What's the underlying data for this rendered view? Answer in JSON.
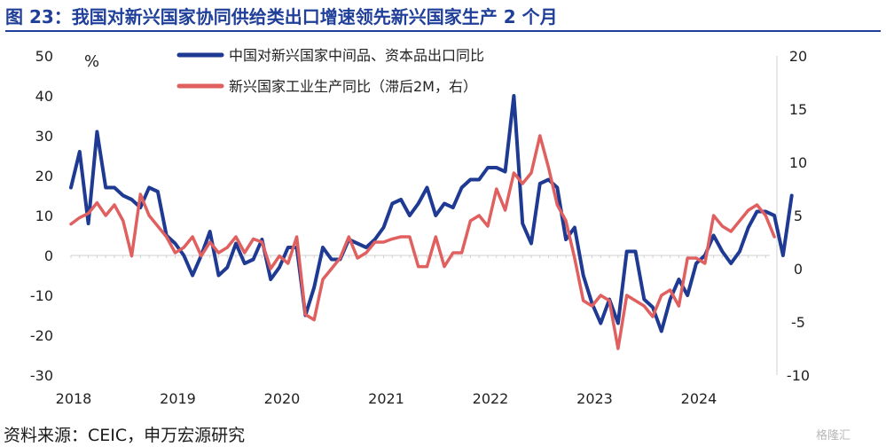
{
  "title": "图 23：我国对新兴国家协同供给类出口增速领先新兴国家生产 2 个月",
  "source": "资料来源：CEIC，申万宏源研究",
  "watermark": "格隆汇",
  "chart_data": {
    "type": "line",
    "y_left": {
      "label": "%",
      "min": -30,
      "max": 50,
      "ticks": [
        50,
        40,
        30,
        20,
        10,
        0,
        -10,
        -20,
        -30
      ]
    },
    "y_right": {
      "min": -10,
      "max": 20,
      "ticks": [
        20,
        15,
        10,
        5,
        0,
        -5,
        -10
      ]
    },
    "x_ticks": [
      "2018",
      "2019",
      "2020",
      "2021",
      "2022",
      "2023",
      "2024"
    ],
    "grid": false,
    "legend_position": "top-center",
    "series": [
      {
        "name": "中国对新兴国家中间品、资本品出口同比",
        "axis": "left",
        "color": "#1f3a93",
        "start": "2018-01",
        "values": [
          17,
          26,
          8,
          31,
          17,
          17,
          15,
          14,
          12,
          17,
          16,
          5,
          3,
          0,
          -5,
          0,
          6,
          -5,
          -3,
          3,
          -2,
          -1,
          4,
          -6,
          -3,
          2,
          2,
          -15,
          -8,
          2,
          -1,
          -1,
          4,
          3,
          2,
          4,
          7,
          13,
          14,
          10,
          13,
          17,
          10,
          13,
          12,
          17,
          19,
          19,
          22,
          22,
          21,
          40,
          8,
          3,
          18,
          19,
          17,
          4,
          7,
          -5,
          -12,
          -17,
          -11,
          -17,
          1,
          1,
          -11,
          -13,
          -19,
          -11,
          -6,
          -10,
          -2,
          0,
          5,
          1,
          -2,
          1,
          7,
          11,
          11,
          10,
          0,
          15
        ]
      },
      {
        "name": "新兴国家工业生产同比（滞后2M，右）",
        "axis": "right",
        "color": "#e06060",
        "start": "2018-01",
        "values": [
          4.2,
          4.8,
          5.2,
          6.2,
          5.0,
          6.0,
          4.5,
          1.2,
          7.0,
          5.0,
          4.0,
          3.0,
          1.5,
          2.0,
          3.0,
          1.2,
          2.5,
          1.5,
          2.0,
          3.0,
          1.5,
          2.8,
          2.5,
          0,
          1.2,
          0.5,
          3.0,
          -4.3,
          -4.8,
          -1.0,
          0,
          1.0,
          3.0,
          1.0,
          1.5,
          2.5,
          2.5,
          2.8,
          3.0,
          3.0,
          0.2,
          0.2,
          3.0,
          0.2,
          1.5,
          1.5,
          4.5,
          5.0,
          4.0,
          7.5,
          5.5,
          9.0,
          8.0,
          9.0,
          12.5,
          9.5,
          6.0,
          4.5,
          1.0,
          -3.0,
          -3.5,
          -2.5,
          -3.0,
          -7.5,
          -2.5,
          -3.0,
          -3.5,
          -4.5,
          -2.5,
          -2.0,
          -3.5,
          1.0,
          1.0,
          0.5,
          5.0,
          4.0,
          3.5,
          4.5,
          5.5,
          6.0,
          5.0,
          3.0
        ]
      }
    ]
  }
}
